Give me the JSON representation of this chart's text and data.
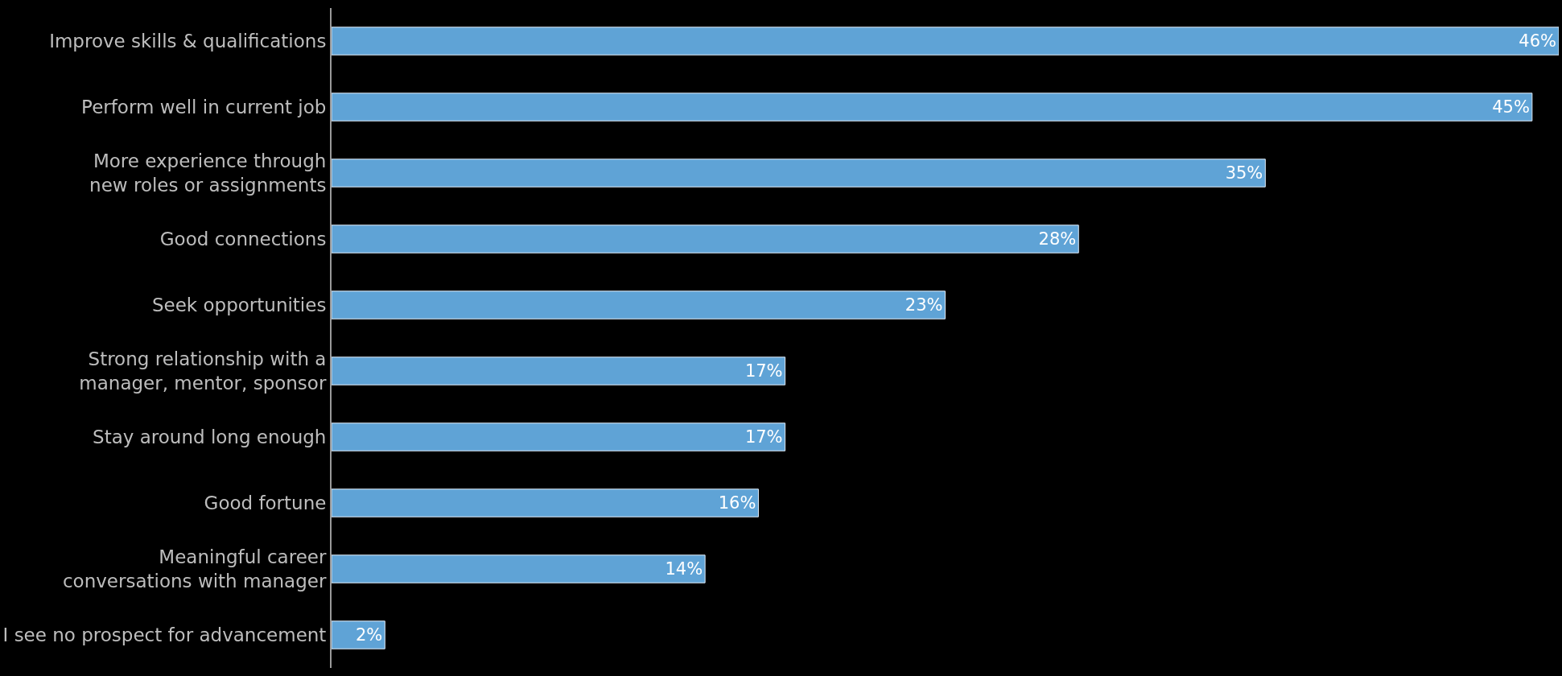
{
  "chart_data": {
    "type": "bar",
    "orientation": "horizontal",
    "categories": [
      "Improve skills & qualifications",
      "Perform well in current job",
      "More experience through\nnew roles or assignments",
      "Good connections",
      "Seek opportunities",
      "Strong relationship with a\nmanager, mentor, sponsor",
      "Stay around long enough",
      "Good fortune",
      "Meaningful career\nconversations with manager",
      "I see no prospect for advancement"
    ],
    "values": [
      46,
      45,
      35,
      28,
      23,
      17,
      17,
      16,
      14,
      2
    ],
    "value_labels": [
      "46%",
      "45%",
      "35%",
      "28%",
      "23%",
      "17%",
      "17%",
      "16%",
      "14%",
      "2%"
    ],
    "color": "#5fa3d6"
  }
}
